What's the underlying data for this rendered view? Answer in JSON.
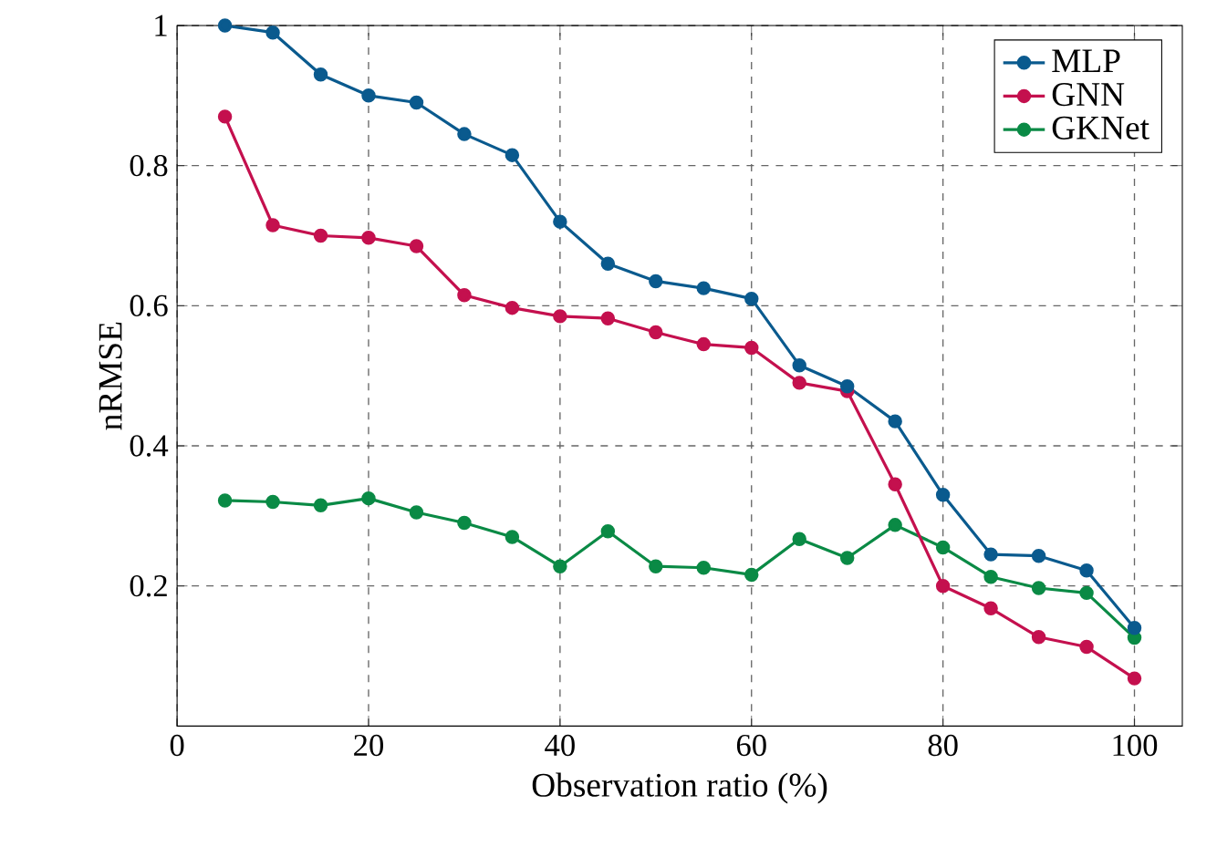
{
  "chart_data": {
    "type": "line",
    "xlabel": "Observation ratio (%)",
    "ylabel": "nRMSE",
    "x": [
      5,
      10,
      15,
      20,
      25,
      30,
      35,
      40,
      45,
      50,
      55,
      60,
      65,
      70,
      75,
      80,
      85,
      90,
      95,
      100
    ],
    "series": [
      {
        "name": "MLP",
        "color": "#0a5a8e",
        "values": [
          1.0,
          0.99,
          0.93,
          0.9,
          0.89,
          0.845,
          0.815,
          0.72,
          0.66,
          0.635,
          0.625,
          0.61,
          0.515,
          0.485,
          0.435,
          0.33,
          0.245,
          0.243,
          0.222,
          0.14
        ]
      },
      {
        "name": "GNN",
        "color": "#c4104e",
        "values": [
          0.87,
          0.715,
          0.7,
          0.697,
          0.685,
          0.615,
          0.597,
          0.585,
          0.582,
          0.562,
          0.545,
          0.54,
          0.49,
          0.478,
          0.345,
          0.2,
          0.168,
          0.127,
          0.113,
          0.068
        ]
      },
      {
        "name": "GKNet",
        "color": "#0a8a45",
        "values": [
          0.322,
          0.32,
          0.315,
          0.325,
          0.305,
          0.29,
          0.27,
          0.228,
          0.278,
          0.228,
          0.226,
          0.216,
          0.267,
          0.24,
          0.287,
          0.255,
          0.213,
          0.197,
          0.19,
          0.126
        ]
      }
    ],
    "xlim": [
      0,
      105
    ],
    "ylim": [
      0,
      1
    ],
    "xticks": [
      0,
      20,
      40,
      60,
      80,
      100
    ],
    "yticks": [
      0.2,
      0.4,
      0.6,
      0.8,
      1
    ],
    "grid": true,
    "legend": "top right",
    "marker": "circle",
    "line_style": "solid"
  }
}
